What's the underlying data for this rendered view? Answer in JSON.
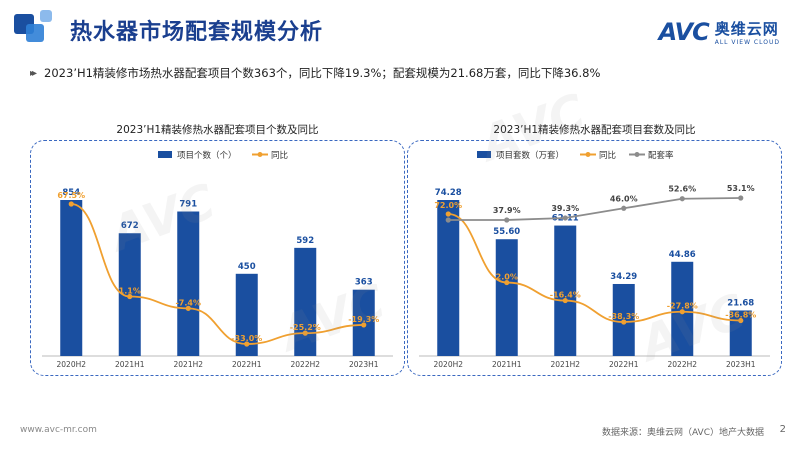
{
  "page": {
    "title": "热水器市场配套规模分析",
    "summary": "2023’H1精装修市场热水器配套项目个数363个，同比下降19.3%；配套规模为21.68万套，同比下降36.8%",
    "footer_left": "www.avc-mr.com",
    "footer_right": "数据来源：奥维云网（AVC）地产大数据",
    "page_number": "2"
  },
  "logo": {
    "mark": "AVC",
    "cn": "奥维云网",
    "en": "ALL VIEW CLOUD"
  },
  "colors": {
    "bar": "#1a4fa0",
    "yoy": "#f0a030",
    "rate": "#8c8c8c",
    "title": "#1a3f8f"
  },
  "chart_data": [
    {
      "type": "bar",
      "title": "2023’H1精装修热水器配套项目个数及同比",
      "categories": [
        "2020H2",
        "2021H1",
        "2021H2",
        "2022H1",
        "2022H2",
        "2023H1"
      ],
      "series": [
        {
          "name": "项目个数（个）",
          "kind": "bar",
          "values": [
            854,
            672,
            791,
            450,
            592,
            363
          ],
          "labels": [
            "854",
            "672",
            "791",
            "450",
            "592",
            "363"
          ]
        },
        {
          "name": "同比",
          "kind": "line",
          "values": [
            67.5,
            1.1,
            -7.4,
            -33.0,
            -25.2,
            -19.3
          ],
          "labels": [
            "67.5%",
            "1.1%",
            "-7.4%",
            "-33.0%",
            "-25.2%",
            "-19.3%"
          ]
        }
      ]
    },
    {
      "type": "bar",
      "title": "2023’H1精装修热水器配套项目套数及同比",
      "categories": [
        "2020H2",
        "2021H1",
        "2021H2",
        "2022H1",
        "2022H2",
        "2023H1"
      ],
      "series": [
        {
          "name": "项目套数（万套）",
          "kind": "bar",
          "values": [
            74.28,
            55.6,
            62.11,
            34.29,
            44.86,
            21.68
          ],
          "labels": [
            "74.28",
            "55.60",
            "62.11",
            "34.29",
            "44.86",
            "21.68"
          ]
        },
        {
          "name": "同比",
          "kind": "line",
          "values": [
            72.0,
            2.0,
            -16.4,
            -38.3,
            -27.8,
            -36.8
          ],
          "labels": [
            "72.0%",
            "2.0%",
            "-16.4%",
            "-38.3%",
            "-27.8%",
            "-36.8%"
          ]
        },
        {
          "name": "配套率",
          "kind": "line",
          "values": [
            37.9,
            37.9,
            39.3,
            46.0,
            52.6,
            53.1
          ],
          "labels": [
            "",
            "37.9%",
            "39.3%",
            "46.0%",
            "52.6%",
            "53.1%"
          ]
        }
      ]
    }
  ]
}
